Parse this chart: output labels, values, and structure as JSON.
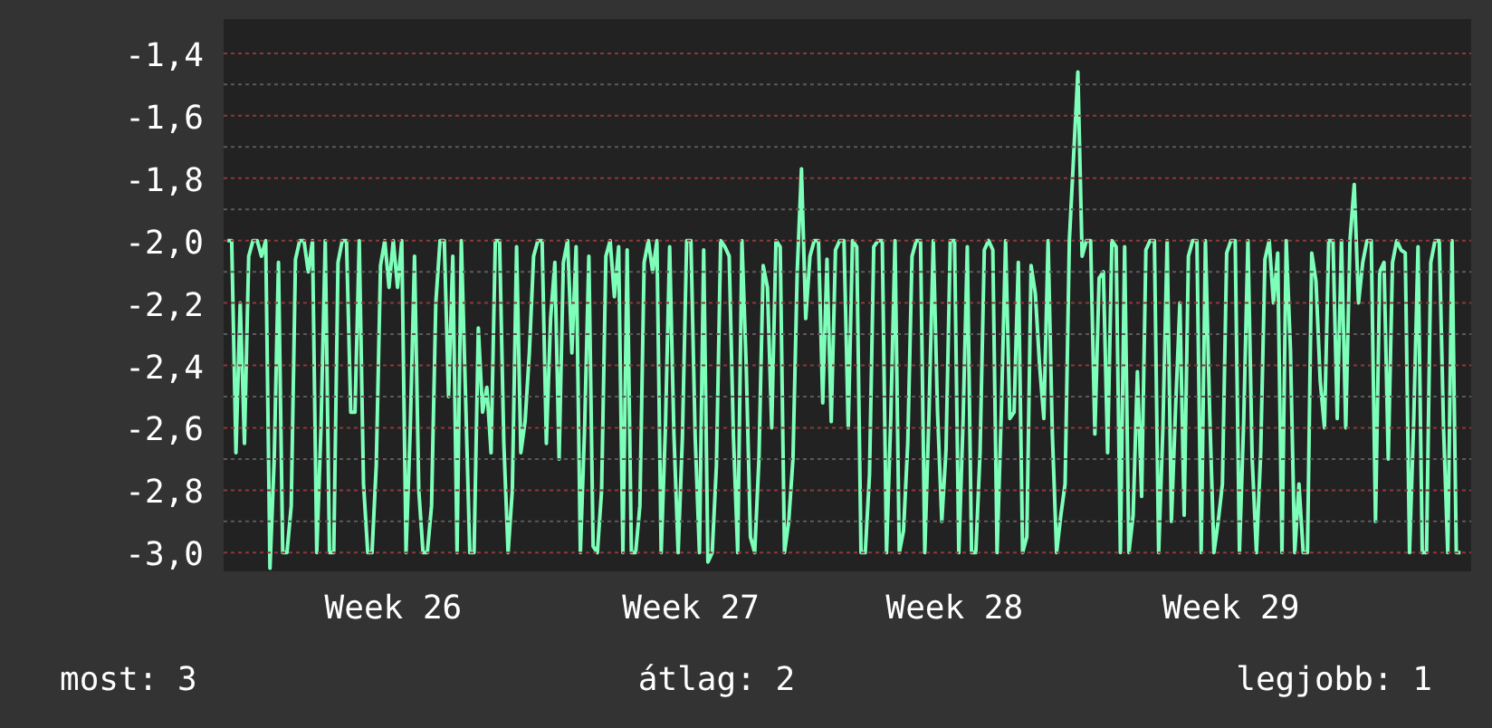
{
  "chart_data": {
    "type": "line",
    "grid": "y",
    "line_style": "solid",
    "marker": "none",
    "ylim": [
      -3.06,
      -1.29
    ],
    "categories": [
      null,
      null,
      null,
      null,
      null,
      null,
      null,
      null,
      null,
      null,
      null,
      null,
      null,
      null,
      null,
      null,
      null,
      null,
      null,
      null,
      null,
      null,
      null,
      null,
      null,
      null,
      null,
      null,
      null,
      null,
      null,
      null,
      null,
      null,
      null,
      null,
      null,
      null,
      null,
      "Week 26",
      null,
      null,
      null,
      null,
      null,
      null,
      null,
      null,
      null,
      null,
      null,
      null,
      null,
      null,
      null,
      null,
      null,
      null,
      null,
      null,
      null,
      null,
      null,
      null,
      null,
      null,
      null,
      null,
      null,
      null,
      null,
      null,
      null,
      null,
      null,
      null,
      null,
      null,
      null,
      null,
      null,
      null,
      null,
      null,
      null,
      null,
      null,
      null,
      null,
      null,
      null,
      null,
      null,
      null,
      null,
      null,
      null,
      null,
      null,
      null,
      null,
      null,
      null,
      null,
      null,
      null,
      null,
      null,
      null,
      "Week 27",
      null,
      null,
      null,
      null,
      null,
      null,
      null,
      null,
      null,
      null,
      null,
      null,
      null,
      null,
      null,
      null,
      null,
      null,
      null,
      null,
      null,
      null,
      null,
      null,
      null,
      null,
      null,
      null,
      null,
      null,
      null,
      null,
      null,
      null,
      null,
      null,
      null,
      null,
      null,
      null,
      null,
      null,
      null,
      null,
      null,
      null,
      null,
      null,
      null,
      null,
      null,
      null,
      null,
      null,
      null,
      null,
      null,
      null,
      null,
      null,
      null,
      "Week 28",
      null,
      null,
      null,
      null,
      null,
      null,
      null,
      null,
      null,
      null,
      null,
      null,
      null,
      null,
      null,
      null,
      null,
      null,
      null,
      null,
      null,
      null,
      null,
      null,
      null,
      null,
      null,
      null,
      null,
      null,
      null,
      null,
      null,
      null,
      null,
      null,
      null,
      null,
      null,
      null,
      null,
      null,
      null,
      null,
      null,
      null,
      null,
      null,
      null,
      null,
      null,
      null,
      null,
      null,
      null,
      null,
      null,
      null,
      null,
      null,
      null,
      null,
      null,
      null,
      "Week 29",
      null,
      null,
      null,
      null,
      null,
      null,
      null,
      null,
      null,
      null,
      null,
      null,
      null,
      null,
      null,
      null,
      null,
      null,
      null,
      null,
      null,
      null,
      null,
      null,
      null,
      null,
      null,
      null,
      null,
      null,
      null,
      null,
      null,
      null,
      null,
      null,
      null,
      null,
      null,
      null,
      null,
      null,
      null,
      null,
      null,
      null,
      null,
      null,
      null,
      null,
      null,
      null,
      null,
      null
    ],
    "yticks": [
      {
        "value": -1.4,
        "label": "-1,4"
      },
      {
        "value": -1.6,
        "label": "-1,6"
      },
      {
        "value": -1.8,
        "label": "-1,8"
      },
      {
        "value": -2.0,
        "label": "-2,0"
      },
      {
        "value": -2.2,
        "label": "-2,2"
      },
      {
        "value": -2.4,
        "label": "-2,4"
      },
      {
        "value": -2.6,
        "label": "-2,6"
      },
      {
        "value": -2.8,
        "label": "-2,8"
      },
      {
        "value": -3.0,
        "label": "-3,0"
      },
      {
        "value": -1.5,
        "label": null
      },
      {
        "value": -1.7,
        "label": null
      },
      {
        "value": -1.9,
        "label": null
      },
      {
        "value": -2.1,
        "label": null
      },
      {
        "value": -2.3,
        "label": null
      },
      {
        "value": -2.5,
        "label": null
      },
      {
        "value": -2.7,
        "label": null
      },
      {
        "value": -2.9,
        "label": null
      }
    ],
    "annotations": [
      "most: 3",
      "átlag: 2",
      "legjobb: 1"
    ],
    "series": [
      {
        "color": "#7dffb9",
        "values": [
          -2.0,
          -2.0,
          -2.68,
          -2.2,
          -2.65,
          -2.05,
          -2.0,
          -2.0,
          -2.05,
          -2.0,
          -3.05,
          -2.7,
          -2.07,
          -3.0,
          -3.0,
          -2.85,
          -2.06,
          -2.0,
          -2.0,
          -2.1,
          -2.0,
          -3.0,
          -2.6,
          -2.0,
          -3.0,
          -3.0,
          -2.07,
          -2.0,
          -2.0,
          -2.55,
          -2.55,
          -2.0,
          -2.78,
          -3.0,
          -3.0,
          -2.72,
          -2.08,
          -2.0,
          -2.15,
          -2.0,
          -2.15,
          -2.0,
          -3.0,
          -2.6,
          -2.05,
          -2.8,
          -3.0,
          -3.0,
          -2.85,
          -2.2,
          -2.0,
          -2.0,
          -2.5,
          -2.05,
          -3.0,
          -2.0,
          -2.5,
          -3.0,
          -3.0,
          -2.28,
          -2.55,
          -2.47,
          -2.68,
          -2.0,
          -2.0,
          -2.65,
          -3.0,
          -2.8,
          -2.02,
          -2.68,
          -2.58,
          -2.36,
          -2.05,
          -2.0,
          -2.0,
          -2.65,
          -2.25,
          -2.07,
          -2.7,
          -2.07,
          -2.0,
          -2.36,
          -2.02,
          -3.0,
          -2.6,
          -2.05,
          -2.98,
          -3.0,
          -2.8,
          -2.05,
          -2.0,
          -2.18,
          -2.02,
          -3.0,
          -2.03,
          -3.0,
          -3.0,
          -2.85,
          -2.07,
          -2.0,
          -2.1,
          -2.0,
          -3.0,
          -2.6,
          -2.02,
          -2.62,
          -3.0,
          -2.63,
          -2.0,
          -2.0,
          -2.63,
          -3.0,
          -2.03,
          -3.03,
          -3.0,
          -2.72,
          -2.0,
          -2.02,
          -2.05,
          -2.63,
          -3.0,
          -2.0,
          -2.4,
          -2.95,
          -3.0,
          -2.7,
          -2.08,
          -2.15,
          -2.6,
          -2.0,
          -2.02,
          -3.0,
          -2.9,
          -2.7,
          -2.1,
          -1.77,
          -2.25,
          -2.05,
          -2.0,
          -2.0,
          -2.52,
          -2.06,
          -2.58,
          -2.03,
          -2.0,
          -2.0,
          -2.6,
          -2.0,
          -2.02,
          -3.0,
          -3.0,
          -2.75,
          -2.02,
          -2.0,
          -2.0,
          -3.0,
          -2.57,
          -2.0,
          -3.0,
          -2.93,
          -2.65,
          -2.05,
          -2.0,
          -2.0,
          -3.0,
          -2.55,
          -2.0,
          -2.55,
          -2.9,
          -2.67,
          -2.0,
          -2.0,
          -3.0,
          -2.58,
          -2.02,
          -3.0,
          -3.0,
          -2.68,
          -2.03,
          -2.0,
          -2.03,
          -3.0,
          -2.55,
          -2.0,
          -2.57,
          -2.55,
          -2.07,
          -3.0,
          -2.95,
          -2.08,
          -2.17,
          -2.4,
          -2.57,
          -2.0,
          -2.62,
          -3.0,
          -2.88,
          -2.78,
          -2.0,
          -1.73,
          -1.46,
          -2.05,
          -2.0,
          -2.0,
          -2.62,
          -2.12,
          -2.1,
          -2.68,
          -2.0,
          -2.02,
          -3.0,
          -2.02,
          -3.0,
          -2.88,
          -2.42,
          -2.82,
          -2.03,
          -2.0,
          -2.0,
          -3.0,
          -2.6,
          -2.0,
          -2.9,
          -2.53,
          -2.2,
          -2.88,
          -2.05,
          -2.0,
          -2.0,
          -3.0,
          -2.0,
          -2.55,
          -3.0,
          -2.9,
          -2.78,
          -2.04,
          -2.0,
          -2.0,
          -3.0,
          -2.58,
          -2.0,
          -2.7,
          -3.0,
          -2.68,
          -2.06,
          -2.0,
          -2.2,
          -2.04,
          -3.0,
          -2.0,
          -2.35,
          -3.0,
          -2.78,
          -3.0,
          -3.0,
          -2.04,
          -2.13,
          -2.45,
          -2.6,
          -2.0,
          -2.0,
          -2.57,
          -2.0,
          -2.6,
          -2.0,
          -1.82,
          -2.2,
          -2.07,
          -2.0,
          -2.0,
          -2.9,
          -2.1,
          -2.07,
          -2.7,
          -2.07,
          -2.0,
          -2.03,
          -2.04,
          -3.0,
          -2.57,
          -2.02,
          -3.0,
          -3.0,
          -2.07,
          -2.0,
          -2.0,
          -2.6,
          -3.0,
          -2.0,
          -3.0,
          -3.0
        ]
      }
    ]
  }
}
